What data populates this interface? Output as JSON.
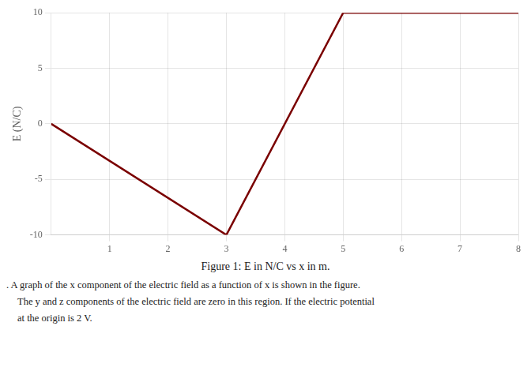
{
  "chart_data": {
    "type": "line",
    "x": [
      0,
      3,
      5,
      8
    ],
    "values": [
      0,
      -10,
      10,
      10
    ],
    "color": "#7a0000",
    "ylabel": "E (N/C)",
    "xlim": [
      0,
      8
    ],
    "ylim": [
      -10,
      10
    ],
    "xticks": [
      1,
      2,
      3,
      4,
      5,
      6,
      7,
      8
    ],
    "yticks": [
      -10,
      -5,
      0,
      5,
      10
    ],
    "grid": true,
    "annotations": [
      "Figure 1: E in N/C vs x in m.",
      ". A graph of the x component of the electric field as a function of x is shown in the figure.",
      "The y and z components of the electric field are zero in this region. If the electric potential",
      "at the origin is 2 V."
    ]
  }
}
